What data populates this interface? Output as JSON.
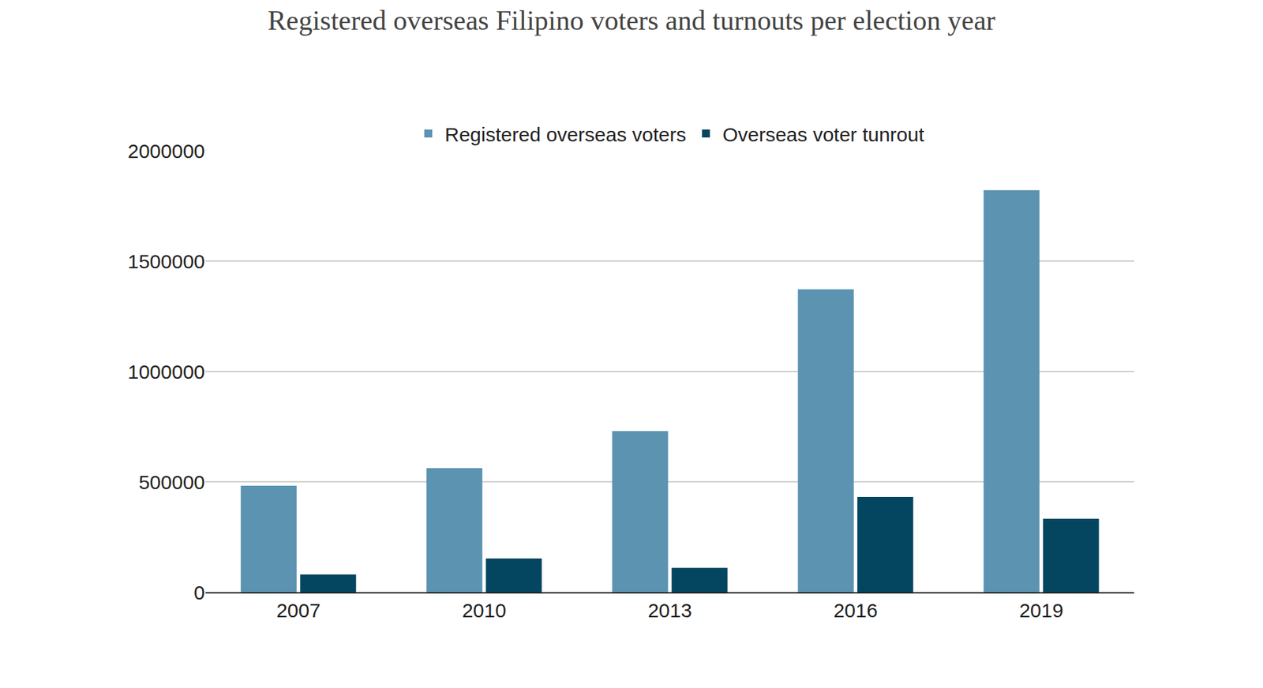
{
  "chart_data": {
    "type": "bar",
    "title": "Registered overseas Filipino voters and turnouts per election year",
    "categories": [
      "2007",
      "2010",
      "2013",
      "2016",
      "2019"
    ],
    "series": [
      {
        "name": "Registered overseas voters",
        "color": "#5b93b1",
        "values": [
          482000,
          562000,
          730000,
          1372000,
          1821000
        ]
      },
      {
        "name": "Overseas voter tunrout",
        "color": "#04455f",
        "values": [
          80000,
          153000,
          110000,
          431000,
          332000
        ]
      }
    ],
    "ylim": [
      0,
      2000000
    ],
    "yticks": [
      0,
      500000,
      1000000,
      1500000,
      2000000
    ],
    "grid": true,
    "legend": "top"
  }
}
